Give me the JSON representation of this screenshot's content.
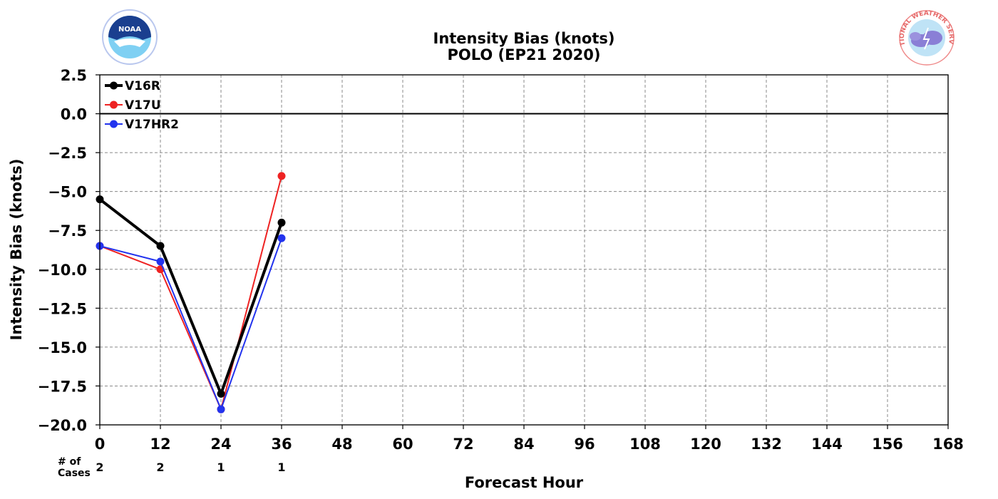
{
  "chart_data": {
    "type": "line",
    "title": "Intensity Bias (knots)",
    "subtitle": "POLO (EP21 2020)",
    "xlabel": "Forecast Hour",
    "ylabel": "Intensity Bias (knots)",
    "xlim": [
      0,
      168
    ],
    "ylim": [
      -20.0,
      2.5
    ],
    "x_ticks": [
      0,
      12,
      24,
      36,
      48,
      60,
      72,
      84,
      96,
      108,
      120,
      132,
      144,
      156,
      168
    ],
    "x_tick_labels": [
      "0",
      "12",
      "24",
      "36",
      "48",
      "60",
      "72",
      "84",
      "96",
      "108",
      "120",
      "132",
      "144",
      "156",
      "168"
    ],
    "y_ticks": [
      2.5,
      0.0,
      -2.5,
      -5.0,
      -7.5,
      -10.0,
      -12.5,
      -15.0,
      -17.5,
      -20.0
    ],
    "y_tick_labels": [
      "2.5",
      "0.0",
      "−2.5",
      "−5.0",
      "−7.5",
      "−10.0",
      "−12.5",
      "−15.0",
      "−17.5",
      "−20.0"
    ],
    "grid": true,
    "legend_position": "top-left",
    "series": [
      {
        "name": "V16R",
        "color": "#000000",
        "x": [
          0,
          12,
          24,
          36
        ],
        "values": [
          -5.5,
          -8.5,
          -18.0,
          -7.0
        ]
      },
      {
        "name": "V17U",
        "color": "#ee2222",
        "x": [
          0,
          12,
          24,
          36
        ],
        "values": [
          -8.5,
          -10.0,
          -19.0,
          -4.0
        ]
      },
      {
        "name": "V17HR2",
        "color": "#2233ee",
        "x": [
          0,
          12,
          24,
          36
        ],
        "values": [
          -8.5,
          -9.5,
          -19.0,
          -8.0
        ]
      }
    ],
    "cases_label_line1": "# of",
    "cases_label_line2": "Cases",
    "cases": {
      "x": [
        0,
        12,
        24,
        36
      ],
      "values": [
        "2",
        "2",
        "1",
        "1"
      ]
    }
  },
  "logos": {
    "left": {
      "name": "noaa-logo",
      "text": "NOAA"
    },
    "right": {
      "name": "nws-logo",
      "text": "NATIONAL WEATHER SERVICE"
    }
  }
}
